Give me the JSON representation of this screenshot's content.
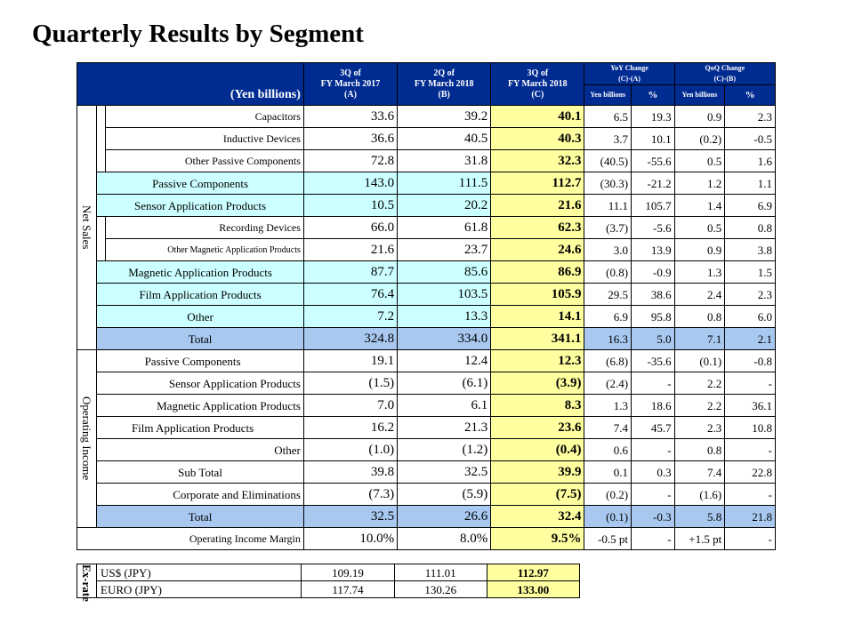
{
  "title": "Quarterly Results by Segment",
  "header": {
    "unit": "(Yen billions)",
    "col_a": [
      "3Q of",
      "FY March 2017",
      "(A)"
    ],
    "col_b": [
      "2Q of",
      "FY March 2018",
      "(B)"
    ],
    "col_c": [
      "3Q of",
      "FY March 2018",
      "(C)"
    ],
    "yoy": [
      "YoY Change",
      "(C)-(A)"
    ],
    "qoq": [
      "QoQ Change",
      "(C)-(B)"
    ],
    "sub_yen": "Yen billions",
    "sub_pct": "%"
  },
  "net_sales_label": "Net Sales",
  "operating_income_label": "Operating Income",
  "net_sales": [
    {
      "label": "Capacitors",
      "a": "33.6",
      "b": "39.2",
      "c": "40.1",
      "yoy": "6.5",
      "yoy_pct": "19.3",
      "qoq": "0.9",
      "qoq_pct": "2.3"
    },
    {
      "label": "Inductive Devices",
      "a": "36.6",
      "b": "40.5",
      "c": "40.3",
      "yoy": "3.7",
      "yoy_pct": "10.1",
      "qoq": "(0.2)",
      "qoq_pct": "-0.5"
    },
    {
      "label": "Other Passive Components",
      "a": "72.8",
      "b": "31.8",
      "c": "32.3",
      "yoy": "(40.5)",
      "yoy_pct": "-55.6",
      "qoq": "0.5",
      "qoq_pct": "1.6"
    },
    {
      "label": "Passive Components",
      "a": "143.0",
      "b": "111.5",
      "c": "112.7",
      "yoy": "(30.3)",
      "yoy_pct": "-21.2",
      "qoq": "1.2",
      "qoq_pct": "1.1"
    },
    {
      "label": "Sensor Application Products",
      "a": "10.5",
      "b": "20.2",
      "c": "21.6",
      "yoy": "11.1",
      "yoy_pct": "105.7",
      "qoq": "1.4",
      "qoq_pct": "6.9"
    },
    {
      "label": "Recording Devices",
      "a": "66.0",
      "b": "61.8",
      "c": "62.3",
      "yoy": "(3.7)",
      "yoy_pct": "-5.6",
      "qoq": "0.5",
      "qoq_pct": "0.8"
    },
    {
      "label": "Other Magnetic Application Products",
      "a": "21.6",
      "b": "23.7",
      "c": "24.6",
      "yoy": "3.0",
      "yoy_pct": "13.9",
      "qoq": "0.9",
      "qoq_pct": "3.8"
    },
    {
      "label": "Magnetic Application Products",
      "a": "87.7",
      "b": "85.6",
      "c": "86.9",
      "yoy": "(0.8)",
      "yoy_pct": "-0.9",
      "qoq": "1.3",
      "qoq_pct": "1.5"
    },
    {
      "label": "Film Application Products",
      "a": "76.4",
      "b": "103.5",
      "c": "105.9",
      "yoy": "29.5",
      "yoy_pct": "38.6",
      "qoq": "2.4",
      "qoq_pct": "2.3"
    },
    {
      "label": "Other",
      "a": "7.2",
      "b": "13.3",
      "c": "14.1",
      "yoy": "6.9",
      "yoy_pct": "95.8",
      "qoq": "0.8",
      "qoq_pct": "6.0"
    },
    {
      "label": "Total",
      "a": "324.8",
      "b": "334.0",
      "c": "341.1",
      "yoy": "16.3",
      "yoy_pct": "5.0",
      "qoq": "7.1",
      "qoq_pct": "2.1"
    }
  ],
  "operating_income": [
    {
      "label": "Passive Components",
      "a": "19.1",
      "b": "12.4",
      "c": "12.3",
      "yoy": "(6.8)",
      "yoy_pct": "-35.6",
      "qoq": "(0.1)",
      "qoq_pct": "-0.8"
    },
    {
      "label": "Sensor Application Products",
      "a": "(1.5)",
      "b": "(6.1)",
      "c": "(3.9)",
      "yoy": "(2.4)",
      "yoy_pct": "-",
      "qoq": "2.2",
      "qoq_pct": "-"
    },
    {
      "label": "Magnetic Application Products",
      "a": "7.0",
      "b": "6.1",
      "c": "8.3",
      "yoy": "1.3",
      "yoy_pct": "18.6",
      "qoq": "2.2",
      "qoq_pct": "36.1"
    },
    {
      "label": "Film Application Products",
      "a": "16.2",
      "b": "21.3",
      "c": "23.6",
      "yoy": "7.4",
      "yoy_pct": "45.7",
      "qoq": "2.3",
      "qoq_pct": "10.8"
    },
    {
      "label": "Other",
      "a": "(1.0)",
      "b": "(1.2)",
      "c": "(0.4)",
      "yoy": "0.6",
      "yoy_pct": "-",
      "qoq": "0.8",
      "qoq_pct": "-"
    },
    {
      "label": "Sub Total",
      "a": "39.8",
      "b": "32.5",
      "c": "39.9",
      "yoy": "0.1",
      "yoy_pct": "0.3",
      "qoq": "7.4",
      "qoq_pct": "22.8"
    },
    {
      "label": "Corporate and Eliminations",
      "a": "(7.3)",
      "b": "(5.9)",
      "c": "(7.5)",
      "yoy": "(0.2)",
      "yoy_pct": "-",
      "qoq": "(1.6)",
      "qoq_pct": "-"
    },
    {
      "label": "Total",
      "a": "32.5",
      "b": "26.6",
      "c": "32.4",
      "yoy": "(0.1)",
      "yoy_pct": "-0.3",
      "qoq": "5.8",
      "qoq_pct": "21.8"
    }
  ],
  "margin": {
    "label": "Operating Income Margin",
    "a": "10.0%",
    "b": "8.0%",
    "c": "9.5%",
    "yoy": "-0.5 pt",
    "yoy_pct": "-",
    "qoq": "+1.5 pt",
    "qoq_pct": "-"
  },
  "exchange": {
    "label": "Ex-rate",
    "rows": [
      {
        "label": "US$ (JPY)",
        "a": "109.19",
        "b": "111.01",
        "c": "112.97"
      },
      {
        "label": "EURO (JPY)",
        "a": "117.74",
        "b": "130.26",
        "c": "133.00"
      }
    ]
  },
  "colors": {
    "header_bg": "#002b91",
    "highlight_c": "#ffffa0",
    "segment_cyan": "#ccffff",
    "total_blue": "#a8c8f0"
  }
}
